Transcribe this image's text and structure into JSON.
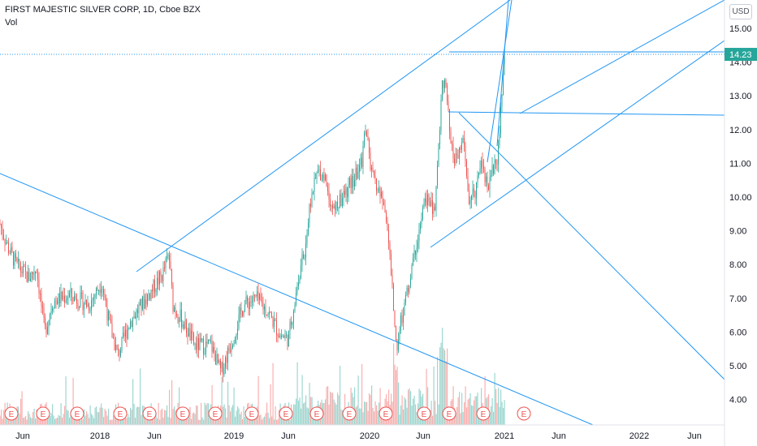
{
  "header": {
    "symbol_title": "FIRST MAJESTIC SILVER CORP, 1D, Cboe BZX",
    "indicator": "Vol",
    "currency_button": "USD"
  },
  "chart_data": {
    "type": "candlestick",
    "y_ticks": [
      "15.00",
      "14.00",
      "13.00",
      "12.00",
      "11.00",
      "10.00",
      "9.00",
      "8.00",
      "7.00",
      "6.00",
      "5.00",
      "4.00"
    ],
    "x_ticks": [
      "Jun",
      "2018",
      "Jun",
      "2019",
      "Jun",
      "2020",
      "Jun",
      "2021",
      "Jun",
      "2022",
      "Jun"
    ],
    "last_price": "14.23",
    "colors": {
      "up": "#26a69a",
      "down": "#ef5350",
      "trendline": "#2196f3",
      "price_label": "#26a69a"
    },
    "earnings_marker": "E",
    "earnings_count": 16,
    "ylim": [
      3.5,
      15.5
    ]
  }
}
